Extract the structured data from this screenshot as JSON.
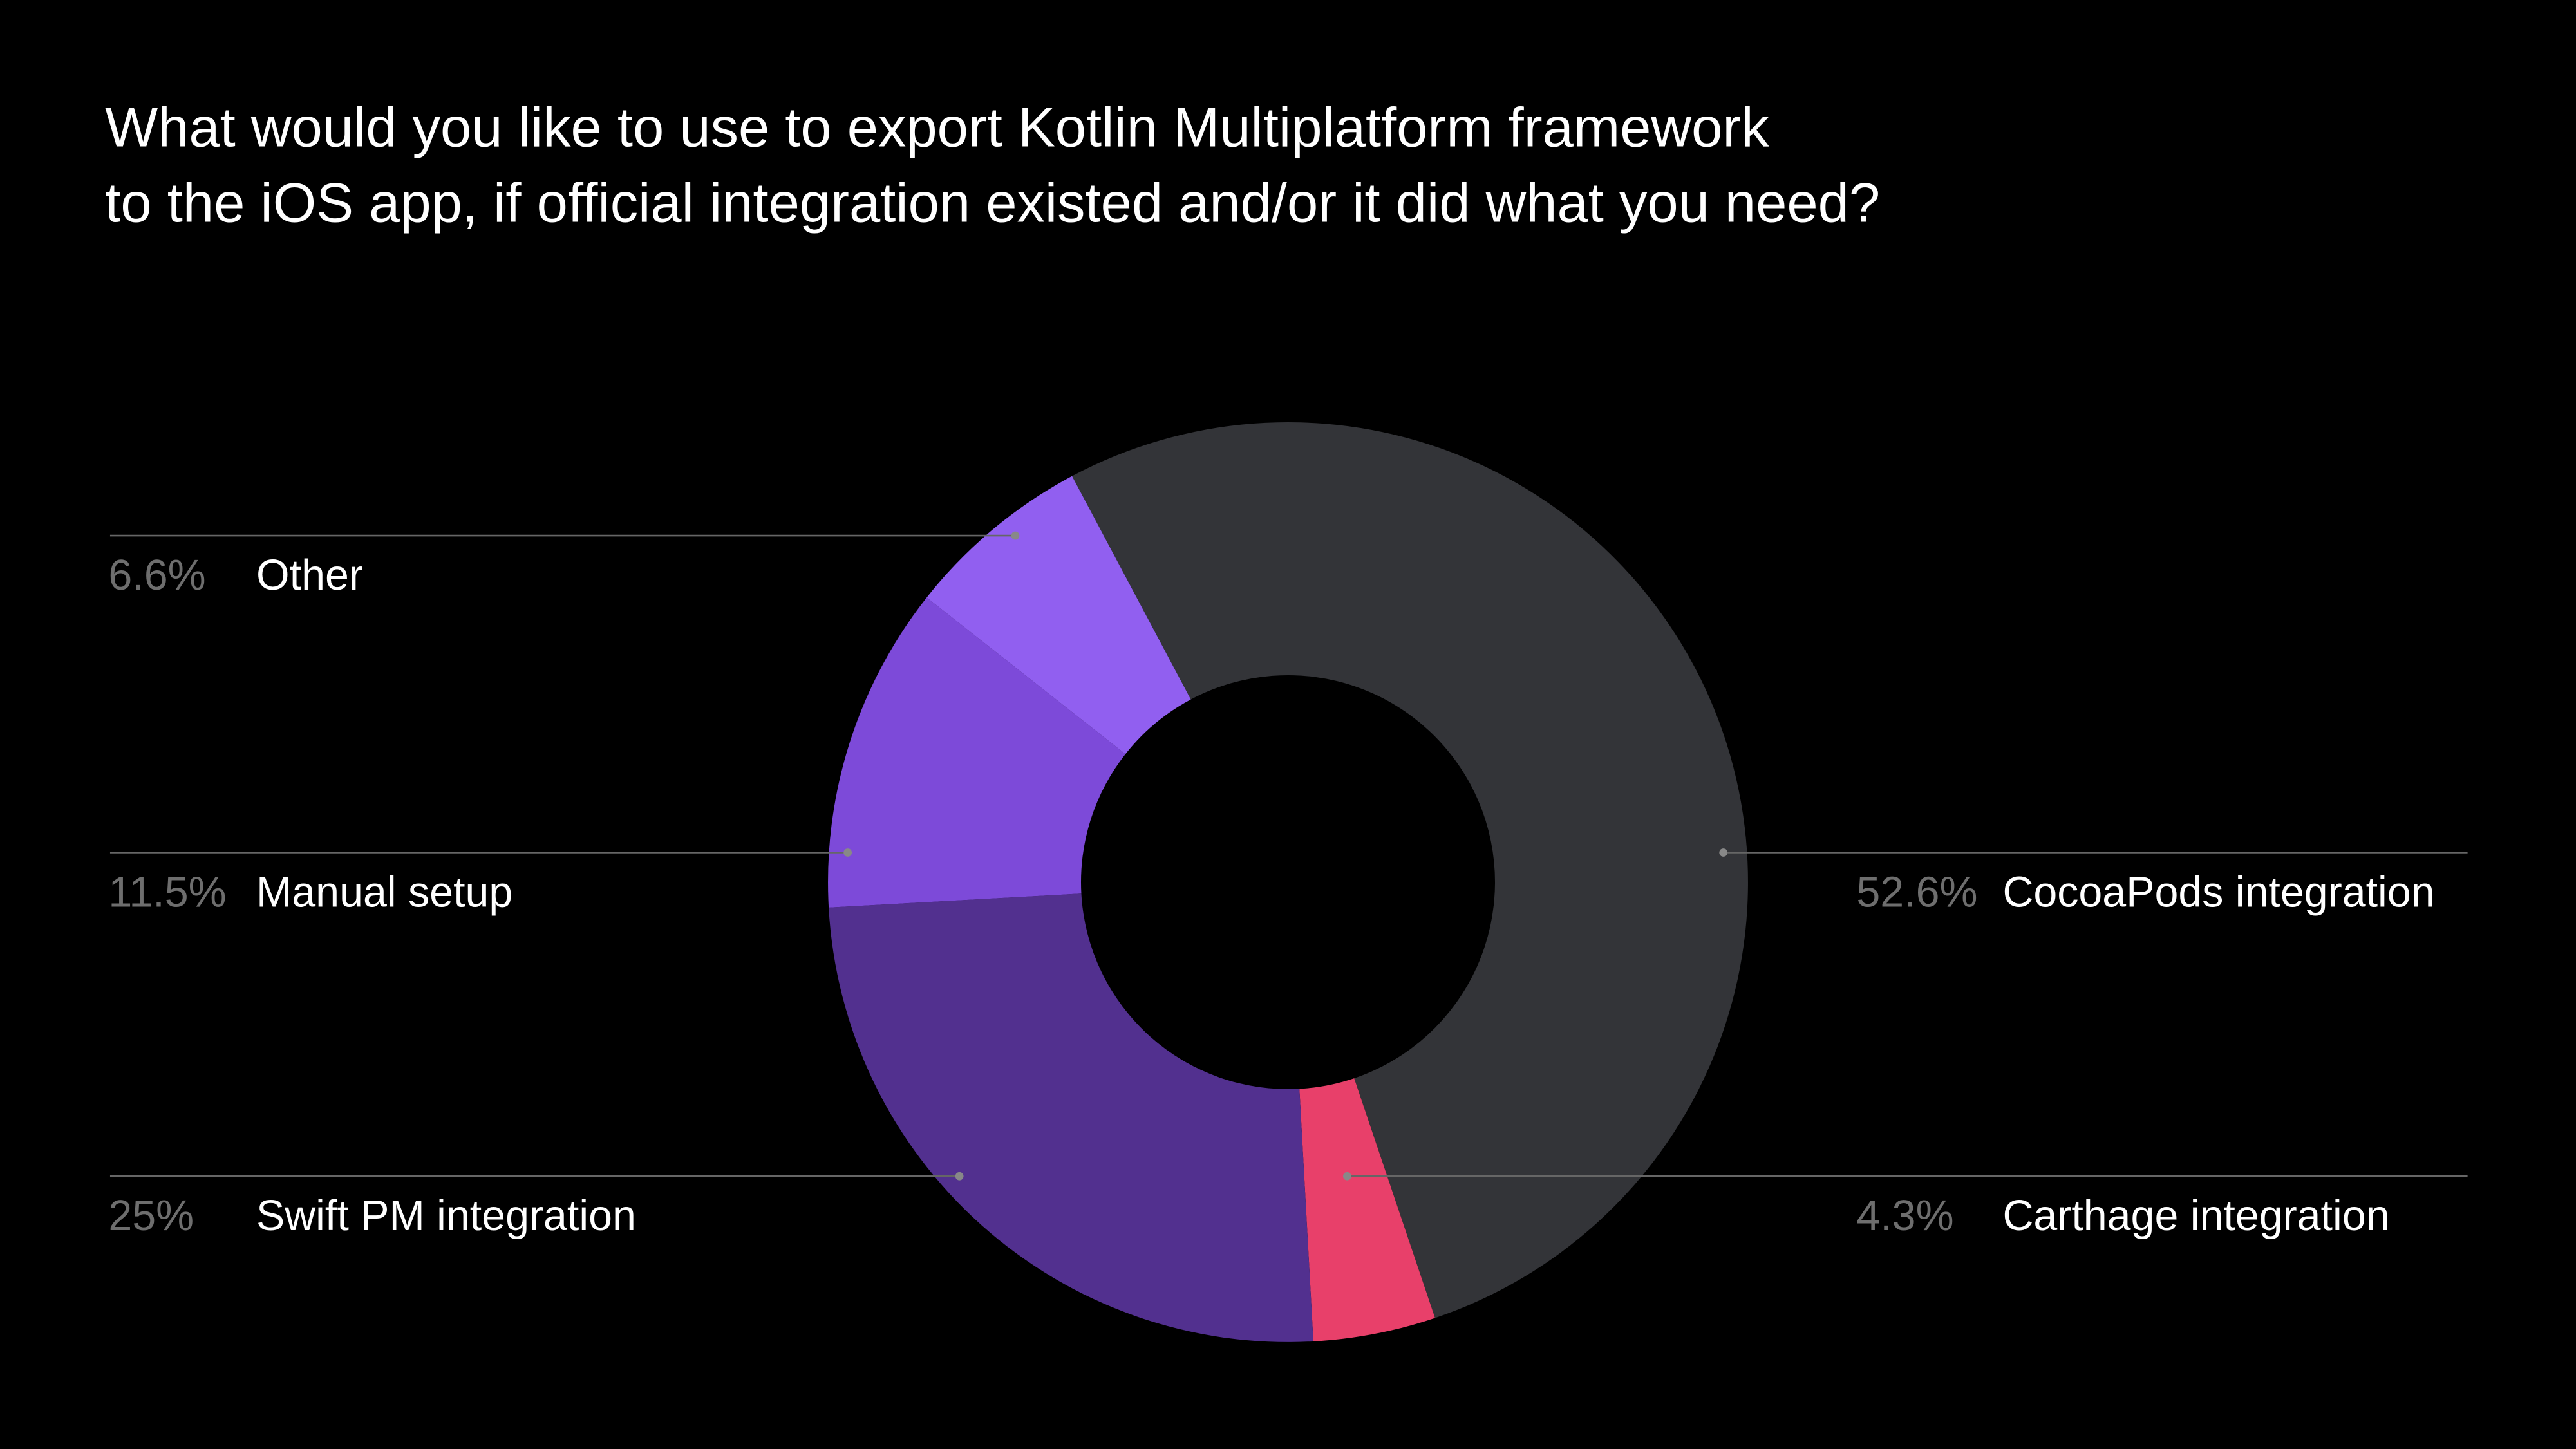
{
  "chart_data": {
    "type": "donut",
    "title": [
      "What would you like to use to export Kotlin Multiplatform framework",
      "to the iOS app, if official integration existed and/or it did what you need?"
    ],
    "categories": [
      "CocoaPods integration",
      "Carthage integration",
      "Swift PM integration",
      "Manual setup",
      "Other"
    ],
    "values": [
      52.6,
      4.3,
      25,
      11.5,
      6.6
    ],
    "value_labels": [
      "52.6%",
      "4.3%",
      "25%",
      "11.5%",
      "6.6%"
    ],
    "colors": [
      "#333438",
      "#e8406a",
      "#52308f",
      "#7d4ad9",
      "#915ff0"
    ]
  }
}
